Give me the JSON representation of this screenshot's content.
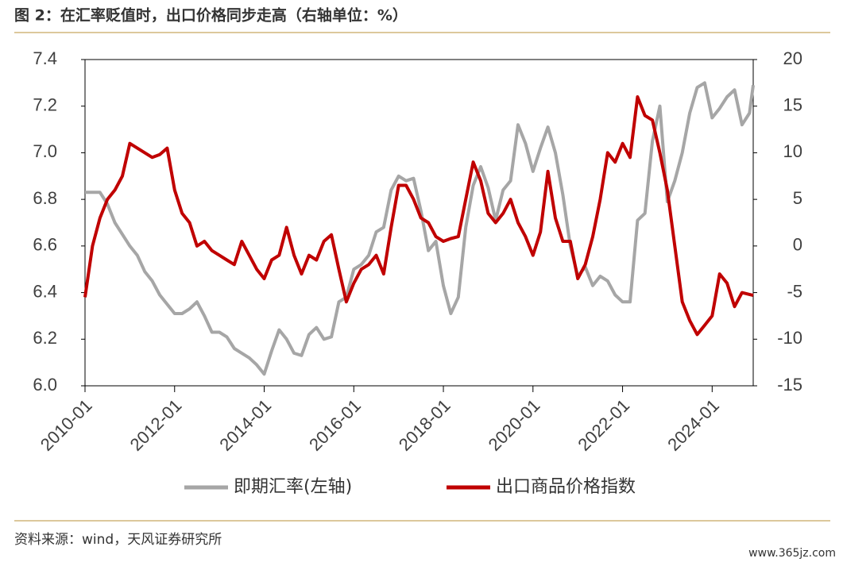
{
  "title": "图 2：在汇率贬值时，出口价格同步走高（右轴单位：%）",
  "source": "资料来源：wind，天风证券研究所",
  "watermark": "www.365jz.com",
  "chart_data": {
    "type": "line",
    "x": [
      "2010-01",
      "2010-03",
      "2010-05",
      "2010-07",
      "2010-09",
      "2010-11",
      "2011-01",
      "2011-03",
      "2011-05",
      "2011-07",
      "2011-09",
      "2011-11",
      "2012-01",
      "2012-03",
      "2012-05",
      "2012-07",
      "2012-09",
      "2012-11",
      "2013-01",
      "2013-03",
      "2013-05",
      "2013-07",
      "2013-09",
      "2013-11",
      "2014-01",
      "2014-03",
      "2014-05",
      "2014-07",
      "2014-09",
      "2014-11",
      "2015-01",
      "2015-03",
      "2015-05",
      "2015-07",
      "2015-09",
      "2015-11",
      "2016-01",
      "2016-03",
      "2016-05",
      "2016-07",
      "2016-09",
      "2016-11",
      "2017-01",
      "2017-03",
      "2017-05",
      "2017-07",
      "2017-09",
      "2017-11",
      "2018-01",
      "2018-03",
      "2018-05",
      "2018-07",
      "2018-09",
      "2018-11",
      "2019-01",
      "2019-03",
      "2019-05",
      "2019-07",
      "2019-09",
      "2019-11",
      "2020-01",
      "2020-03",
      "2020-05",
      "2020-07",
      "2020-09",
      "2020-11",
      "2021-01",
      "2021-03",
      "2021-05",
      "2021-07",
      "2021-09",
      "2021-11",
      "2022-01",
      "2022-03",
      "2022-05",
      "2022-07",
      "2022-09",
      "2022-11",
      "2023-01",
      "2023-03",
      "2023-05",
      "2023-07",
      "2023-09",
      "2023-11",
      "2024-01",
      "2024-03",
      "2024-05",
      "2024-07",
      "2024-09",
      "2024-11",
      "2024-12"
    ],
    "series": [
      {
        "name": "即期汇率(左轴)",
        "color": "#a6a6a6",
        "axis": "y",
        "values": [
          6.83,
          6.83,
          6.83,
          6.78,
          6.7,
          6.65,
          6.6,
          6.56,
          6.49,
          6.45,
          6.39,
          6.35,
          6.31,
          6.31,
          6.33,
          6.36,
          6.3,
          6.23,
          6.23,
          6.21,
          6.16,
          6.14,
          6.12,
          6.09,
          6.05,
          6.15,
          6.24,
          6.2,
          6.14,
          6.13,
          6.22,
          6.25,
          6.2,
          6.21,
          6.36,
          6.38,
          6.5,
          6.52,
          6.56,
          6.66,
          6.68,
          6.84,
          6.9,
          6.88,
          6.89,
          6.75,
          6.58,
          6.62,
          6.43,
          6.31,
          6.38,
          6.68,
          6.86,
          6.94,
          6.85,
          6.71,
          6.84,
          6.88,
          7.12,
          7.04,
          6.92,
          7.02,
          7.11,
          7.0,
          6.82,
          6.6,
          6.47,
          6.51,
          6.43,
          6.47,
          6.45,
          6.39,
          6.36,
          6.36,
          6.71,
          6.74,
          7.05,
          7.2,
          6.79,
          6.88,
          7.0,
          7.17,
          7.28,
          7.3,
          7.15,
          7.19,
          7.24,
          7.27,
          7.12,
          7.17,
          7.29
        ]
      },
      {
        "name": "出口商品价格指数",
        "color": "#c00000",
        "axis": "y2",
        "values": [
          -5.5,
          0,
          3,
          5,
          6,
          7.5,
          11,
          10.5,
          10,
          9.5,
          9.8,
          10.5,
          6,
          3.5,
          2.5,
          0,
          0.5,
          -0.5,
          -1,
          -1.5,
          -2,
          0.5,
          -1,
          -2.5,
          -3.5,
          -1.5,
          -1,
          2,
          -1,
          -3,
          -1,
          -1.5,
          0.5,
          1.2,
          -2.5,
          -6,
          -4,
          -2.5,
          -2,
          -1,
          -3,
          2,
          6.5,
          6.5,
          5,
          3,
          2.5,
          1,
          0.5,
          0.8,
          1,
          5,
          9,
          7,
          3.5,
          2.5,
          3.5,
          5,
          2.5,
          1,
          -1,
          1.5,
          8,
          3,
          0.5,
          0.5,
          -3.5,
          -2,
          1,
          5,
          10,
          9,
          11,
          9.5,
          16,
          14,
          13.5,
          10,
          6,
          0,
          -6,
          -8,
          -9.5,
          -8.5,
          -7.5,
          -3,
          -4,
          -6.5,
          -5,
          -5.2,
          -5.3
        ]
      }
    ],
    "xlim": [
      "2010-01",
      "2024-12"
    ],
    "xticks": [
      "2010-01",
      "2012-01",
      "2014-01",
      "2016-01",
      "2018-01",
      "2020-01",
      "2022-01",
      "2024-01"
    ],
    "ylim": [
      6.0,
      7.4
    ],
    "yticks": [
      {
        "value": 6.0,
        "label": "6.0"
      },
      {
        "value": 6.2,
        "label": "6.2"
      },
      {
        "value": 6.4,
        "label": "6.4"
      },
      {
        "value": 6.6,
        "label": "6.6"
      },
      {
        "value": 6.8,
        "label": "6.8"
      },
      {
        "value": 7.0,
        "label": "7.0"
      },
      {
        "value": 7.2,
        "label": "7.2"
      },
      {
        "value": 7.4,
        "label": "7.4"
      }
    ],
    "y2lim": [
      -15,
      20
    ],
    "y2ticks": [
      -15,
      -10,
      -5,
      0,
      5,
      10,
      15,
      20
    ],
    "grid": false,
    "legend": "bottom"
  }
}
